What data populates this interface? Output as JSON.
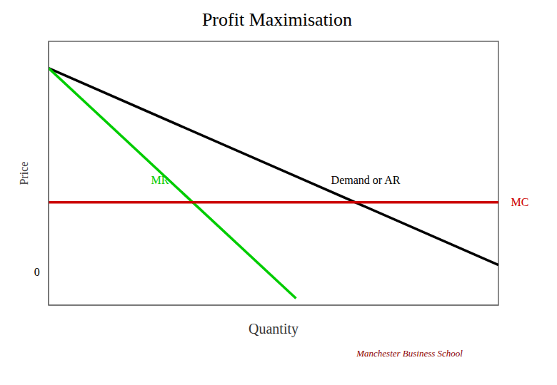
{
  "chart_data": {
    "type": "line",
    "title": "Profit Maximisation",
    "xlabel": "Quantity",
    "ylabel": "Price",
    "series": [
      {
        "color": "#000000",
        "x": [
          0,
          1.0
        ],
        "values": [
          0.88,
          0.0
        ]
      },
      {
        "color": "#00cc00",
        "x": [
          0,
          0.55
        ],
        "values": [
          0.88,
          -0.15
        ]
      },
      {
        "color": "#cc0000",
        "x": [
          0,
          1.0
        ],
        "values": [
          0.28,
          0.28
        ]
      }
    ],
    "xlim": [
      0,
      1.0
    ],
    "ylim": [
      -0.18,
      1.0
    ],
    "tick_labels": false,
    "grid": false,
    "annotations": [
      {
        "text": "Demand or AR",
        "x": 0.62,
        "y": 0.38,
        "color": "#000000"
      },
      {
        "text": "MR",
        "x": 0.22,
        "y": 0.38,
        "color": "#00cc00"
      },
      {
        "text": "MC",
        "x": 1.02,
        "y": 0.28,
        "color": "#cc0000"
      },
      {
        "text": "0",
        "x": -0.04,
        "y": -0.03,
        "color": "#000000"
      },
      {
        "text": "Manchester Business School",
        "color": "#8b0000"
      }
    ]
  }
}
